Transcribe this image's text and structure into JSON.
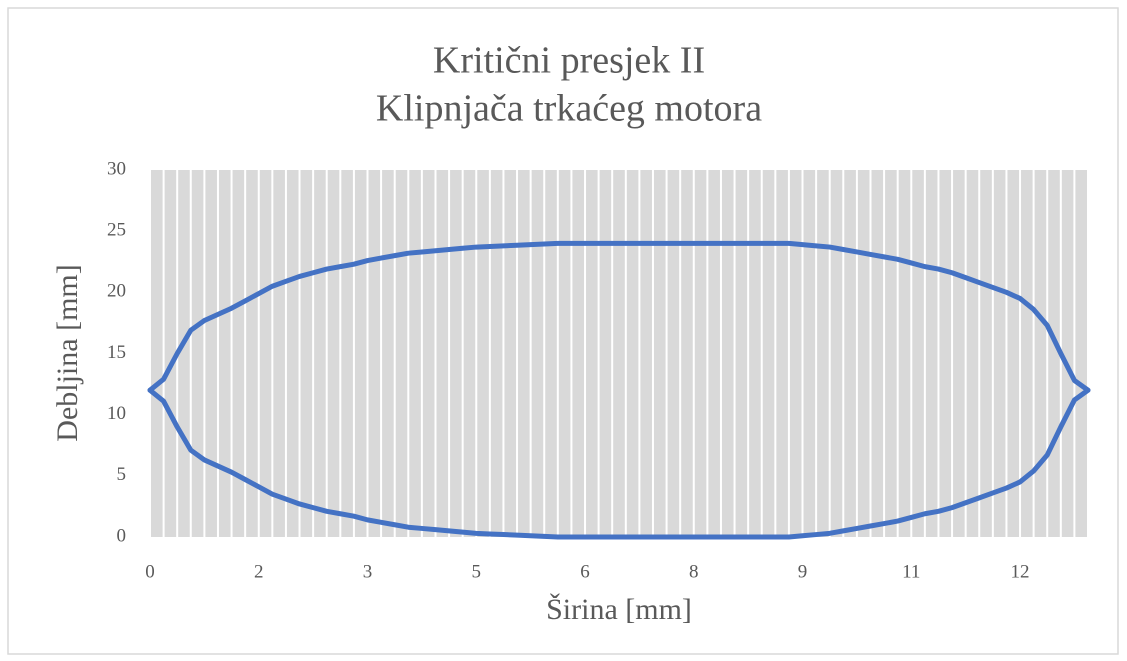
{
  "chart_data": {
    "type": "line",
    "title": "Kritični presjek II",
    "subtitle": "Klipnjača trkaćeg motora",
    "x_label": "Širina [mm]",
    "y_label": "Debljina [mm]",
    "categories": [
      "0",
      null,
      null,
      null,
      null,
      null,
      null,
      null,
      "2",
      null,
      null,
      null,
      null,
      null,
      null,
      null,
      "3",
      null,
      null,
      null,
      null,
      null,
      null,
      null,
      "5",
      null,
      null,
      null,
      null,
      null,
      null,
      null,
      "6",
      null,
      null,
      null,
      null,
      null,
      null,
      null,
      "8",
      null,
      null,
      null,
      null,
      null,
      null,
      null,
      "9",
      null,
      null,
      null,
      null,
      null,
      null,
      null,
      "11",
      null,
      null,
      null,
      null,
      null,
      null,
      null,
      "12",
      null,
      null,
      null,
      null,
      null
    ],
    "series": [
      {
        "color": "#4472c4",
        "values": [
          12,
          12.9,
          15,
          16.9,
          17.7,
          18.2,
          18.7,
          19.3,
          19.9,
          20.5,
          20.9,
          21.3,
          21.6,
          21.9,
          22.1,
          22.3,
          22.6,
          22.8,
          23,
          23.2,
          23.3,
          23.4,
          23.5,
          23.6,
          23.7,
          23.75,
          23.8,
          23.85,
          23.9,
          23.95,
          24,
          24,
          24,
          24,
          24,
          24,
          24,
          24,
          24,
          24,
          24,
          24,
          24,
          24,
          24,
          24,
          24,
          24,
          23.9,
          23.8,
          23.7,
          23.5,
          23.3,
          23.1,
          22.9,
          22.7,
          22.4,
          22.1,
          21.9,
          21.6,
          21.2,
          20.8,
          20.4,
          20,
          19.5,
          18.6,
          17.3,
          15,
          12.8,
          12
        ]
      },
      {
        "color": "#4472c4",
        "values": [
          12,
          11.1,
          9,
          7.1,
          6.3,
          5.8,
          5.3,
          4.7,
          4.1,
          3.5,
          3.1,
          2.7,
          2.4,
          2.1,
          1.9,
          1.7,
          1.4,
          1.2,
          1,
          0.8,
          0.7,
          0.6,
          0.5,
          0.4,
          0.3,
          0.25,
          0.2,
          0.15,
          0.1,
          0.05,
          0,
          0,
          0,
          0,
          0,
          0,
          0,
          0,
          0,
          0,
          0,
          0,
          0,
          0,
          0,
          0,
          0,
          0,
          0.1,
          0.2,
          0.3,
          0.5,
          0.7,
          0.9,
          1.1,
          1.3,
          1.6,
          1.9,
          2.1,
          2.4,
          2.8,
          3.2,
          3.6,
          4,
          4.5,
          5.4,
          6.7,
          9,
          11.2,
          12
        ]
      }
    ],
    "ylim": [
      0,
      30
    ],
    "yticks": [
      0,
      5,
      10,
      15,
      20,
      25,
      30
    ],
    "grid": "x",
    "plot_background": "#d9d9d9"
  }
}
